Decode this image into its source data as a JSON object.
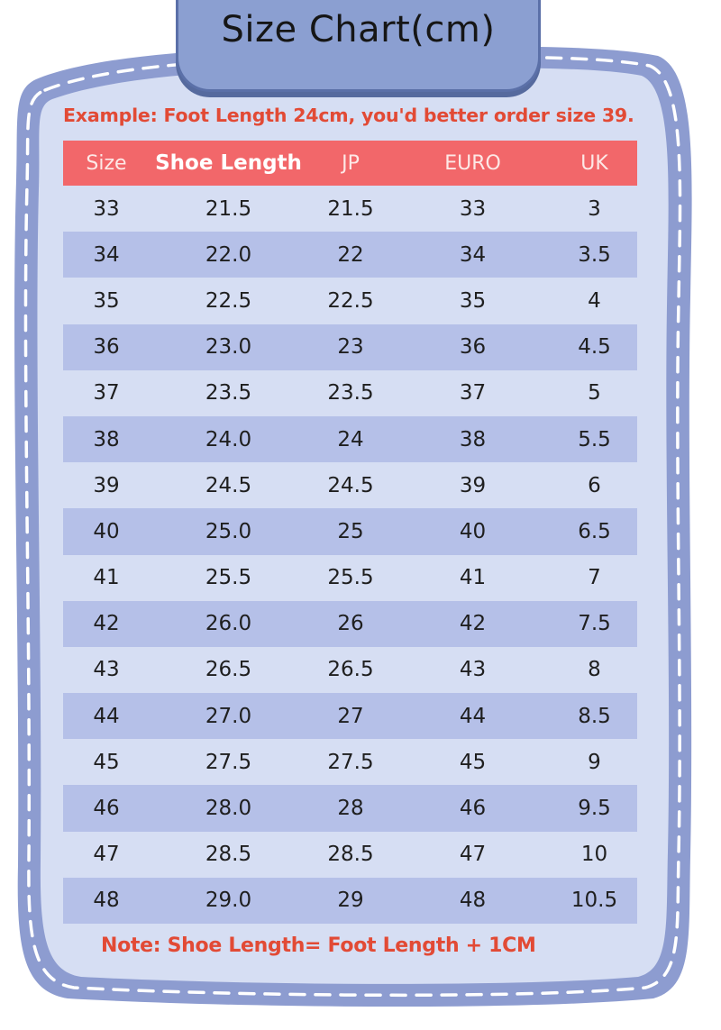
{
  "title": "Size Chart(cm)",
  "example": "Example: Foot Length 24cm, you'd better order size 39.",
  "table": {
    "headers": [
      "Size",
      "Shoe Length",
      "JP",
      "EURO",
      "UK"
    ],
    "rows": [
      [
        "33",
        "21.5",
        "21.5",
        "33",
        "3"
      ],
      [
        "34",
        "22.0",
        "22",
        "34",
        "3.5"
      ],
      [
        "35",
        "22.5",
        "22.5",
        "35",
        "4"
      ],
      [
        "36",
        "23.0",
        "23",
        "36",
        "4.5"
      ],
      [
        "37",
        "23.5",
        "23.5",
        "37",
        "5"
      ],
      [
        "38",
        "24.0",
        "24",
        "38",
        "5.5"
      ],
      [
        "39",
        "24.5",
        "24.5",
        "39",
        "6"
      ],
      [
        "40",
        "25.0",
        "25",
        "40",
        "6.5"
      ],
      [
        "41",
        "25.5",
        "25.5",
        "41",
        "7"
      ],
      [
        "42",
        "26.0",
        "26",
        "42",
        "7.5"
      ],
      [
        "43",
        "26.5",
        "26.5",
        "43",
        "8"
      ],
      [
        "44",
        "27.0",
        "27",
        "44",
        "8.5"
      ],
      [
        "45",
        "27.5",
        "27.5",
        "45",
        "9"
      ],
      [
        "46",
        "28.0",
        "28",
        "46",
        "9.5"
      ],
      [
        "47",
        "28.5",
        "28.5",
        "47",
        "10"
      ],
      [
        "48",
        "29.0",
        "29",
        "48",
        "10.5"
      ]
    ]
  },
  "note": "Note: Shoe Length= Foot Length + 1CM",
  "colors": {
    "frame_border": "#8d9cd0",
    "frame_fill": "#d6def3",
    "header_fill": "#f2676a",
    "shaded_row": "#b5c0e8",
    "accent_text": "#e24a35"
  }
}
